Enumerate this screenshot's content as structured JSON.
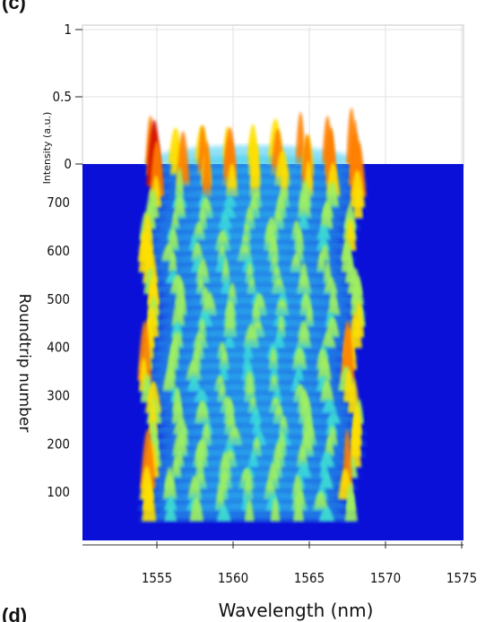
{
  "chart_data": {
    "type": "area",
    "panel_label_top": "(c)",
    "panel_label_bottom": "(d)",
    "xlabel": "Wavelength (nm)",
    "ylabel": "Roundtrip number",
    "zlabel": "Intensity (a.u.)",
    "x_ticks": [
      "1555",
      "1560",
      "1565",
      "1570",
      "1575"
    ],
    "y_ticks": [
      "100",
      "200",
      "300",
      "400",
      "500",
      "600",
      "700"
    ],
    "z_ticks": [
      "1",
      "0.5",
      "0"
    ],
    "xlim": [
      1550,
      1575
    ],
    "ylim": [
      0,
      780
    ],
    "zlim": [
      0,
      1
    ],
    "colormap": [
      "#0000c8",
      "#0050ff",
      "#00b4ff",
      "#40e0d0",
      "#a0f060",
      "#ffe000",
      "#ff8000",
      "#d01000"
    ],
    "background_color": "#0a10d8",
    "spectrum_band_nm": [
      1554,
      1568
    ]
  }
}
